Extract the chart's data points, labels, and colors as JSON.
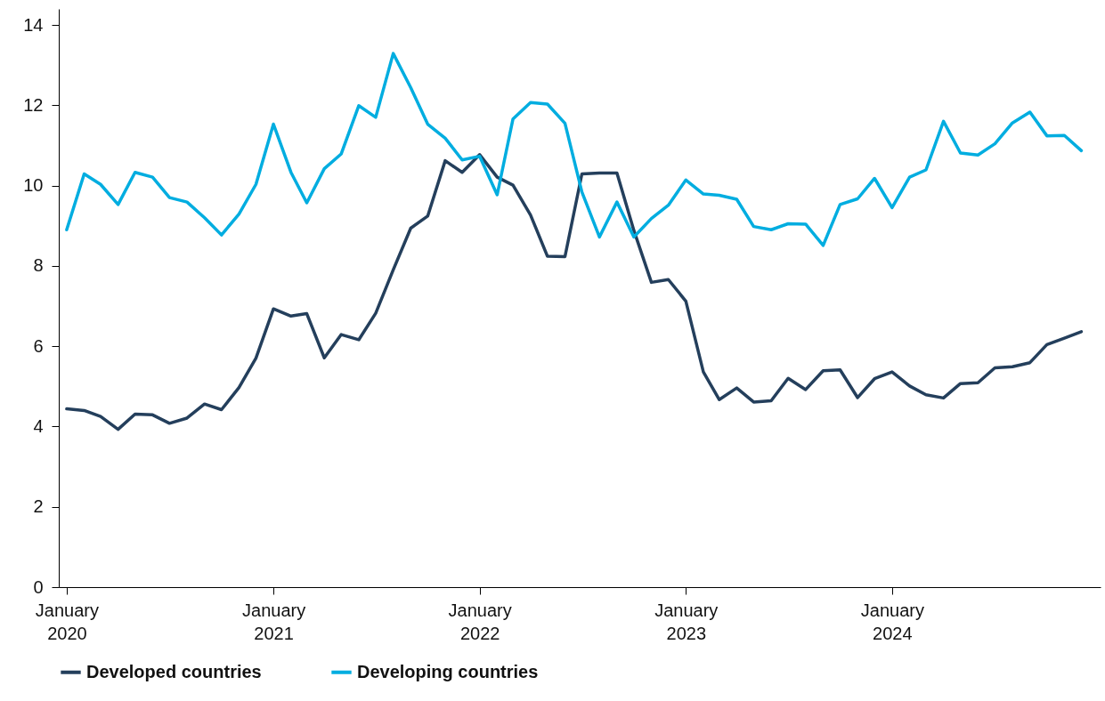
{
  "chart_data": {
    "type": "line",
    "x": [
      "2020-01",
      "2020-02",
      "2020-03",
      "2020-04",
      "2020-05",
      "2020-06",
      "2020-07",
      "2020-08",
      "2020-09",
      "2020-10",
      "2020-11",
      "2020-12",
      "2021-01",
      "2021-02",
      "2021-03",
      "2021-04",
      "2021-05",
      "2021-06",
      "2021-07",
      "2021-08",
      "2021-09",
      "2021-10",
      "2021-11",
      "2021-12",
      "2022-01",
      "2022-02",
      "2022-03",
      "2022-04",
      "2022-05",
      "2022-06",
      "2022-07",
      "2022-08",
      "2022-09",
      "2022-10",
      "2022-11",
      "2022-12",
      "2023-01",
      "2023-02",
      "2023-03",
      "2023-04",
      "2023-05",
      "2023-06",
      "2023-07",
      "2023-08",
      "2023-09",
      "2023-10",
      "2023-11",
      "2023-12",
      "2024-01",
      "2024-02",
      "2024-03",
      "2024-04",
      "2024-05",
      "2024-06",
      "2024-07",
      "2024-08",
      "2024-09",
      "2024-10",
      "2024-11",
      "2024-12"
    ],
    "series": [
      {
        "name": "Developed countries",
        "color": "#243f5c",
        "values": [
          4.44,
          4.4,
          4.25,
          3.93,
          4.31,
          4.29,
          4.08,
          4.21,
          4.56,
          4.42,
          4.97,
          5.7,
          6.93,
          6.75,
          6.81,
          5.71,
          6.29,
          6.16,
          6.82,
          7.9,
          8.94,
          9.24,
          10.62,
          10.33,
          10.77,
          10.21,
          10.01,
          9.27,
          8.24,
          8.23,
          10.29,
          10.31,
          10.31,
          8.88,
          7.59,
          7.66,
          7.12,
          5.36,
          4.67,
          4.96,
          4.61,
          4.64,
          5.2,
          4.92,
          5.39,
          5.41,
          4.72,
          5.19,
          5.36,
          5.01,
          4.79,
          4.71,
          5.07,
          5.09,
          5.46,
          5.49,
          5.59,
          6.04,
          6.2,
          6.36
        ]
      },
      {
        "name": "Developing countries",
        "color": "#00ade0",
        "values": [
          8.9,
          10.29,
          10.03,
          9.53,
          10.33,
          10.21,
          9.7,
          9.59,
          9.2,
          8.77,
          9.29,
          10.03,
          11.53,
          10.33,
          9.57,
          10.42,
          10.79,
          11.99,
          11.7,
          13.29,
          12.44,
          11.53,
          11.18,
          10.64,
          10.73,
          9.77,
          11.66,
          12.07,
          12.03,
          11.55,
          9.84,
          8.72,
          9.59,
          8.72,
          9.18,
          9.51,
          10.14,
          9.79,
          9.76,
          9.66,
          8.98,
          8.9,
          9.05,
          9.04,
          8.51,
          9.53,
          9.67,
          10.18,
          9.45,
          10.21,
          10.39,
          11.6,
          10.81,
          10.76,
          11.04,
          11.56,
          11.83,
          11.24,
          11.25,
          10.87
        ]
      }
    ],
    "xlim": [
      "2019-12-18",
      "2025-01-04"
    ],
    "xticks": [
      {
        "value": "2020-01",
        "label": "January 2020"
      },
      {
        "value": "2021-01",
        "label": "January 2021"
      },
      {
        "value": "2022-01",
        "label": "January 2022"
      },
      {
        "value": "2023-01",
        "label": "January 2023"
      },
      {
        "value": "2024-01",
        "label": "January 2024"
      }
    ],
    "ylim": [
      0,
      14.4
    ],
    "yticks": [
      0,
      2,
      4,
      6,
      8,
      10,
      12,
      14
    ],
    "legend": "bottom"
  }
}
